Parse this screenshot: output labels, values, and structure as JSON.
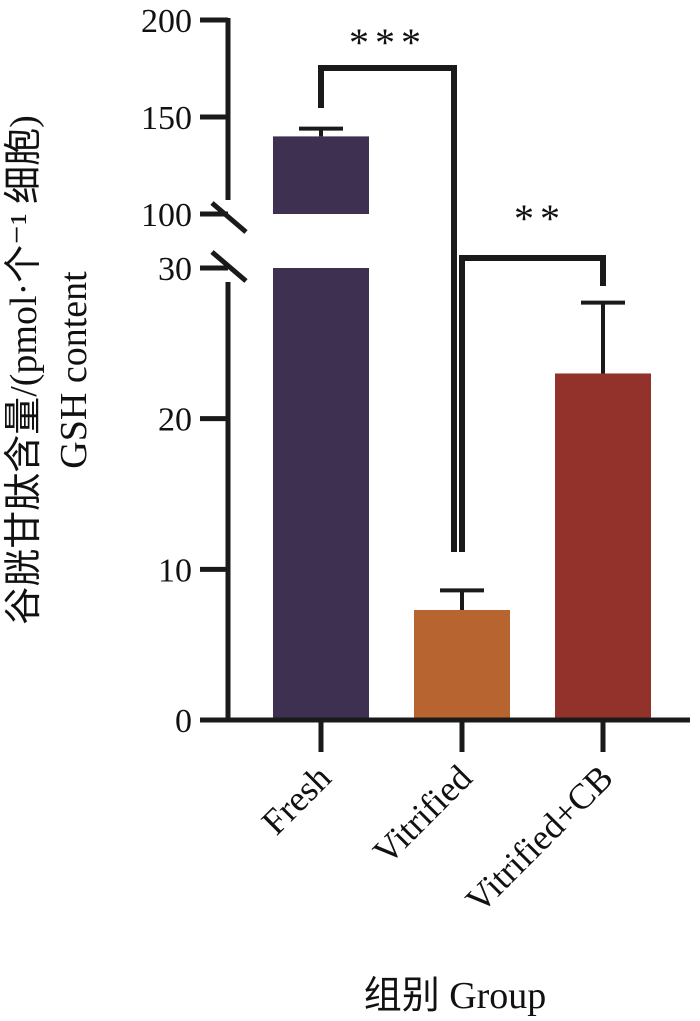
{
  "chart_data": {
    "type": "bar",
    "categories": [
      "Fresh",
      "Vitrified",
      "Vitrified+CB"
    ],
    "values": [
      140,
      7.3,
      23
    ],
    "errors": [
      4,
      1.3,
      4.7
    ],
    "colors": [
      "#3d3050",
      "#b86430",
      "#92322b"
    ],
    "axis_break": {
      "lower_top": 30,
      "upper_bottom": 100
    },
    "lower_ticks": [
      "0",
      "10",
      "20",
      "30"
    ],
    "upper_ticks": [
      "100",
      "150",
      "200"
    ],
    "ylim": [
      0,
      200
    ],
    "ylabel_cn": "谷胱甘肽含量/(pmol·个⁻¹ 细胞)",
    "ylabel_en": "GSH content",
    "xlabel": "组别 Group",
    "significance": [
      {
        "pair": [
          "Fresh",
          "Vitrified"
        ],
        "label": "***"
      },
      {
        "pair": [
          "Vitrified",
          "Vitrified+CB"
        ],
        "label": "**"
      }
    ]
  }
}
